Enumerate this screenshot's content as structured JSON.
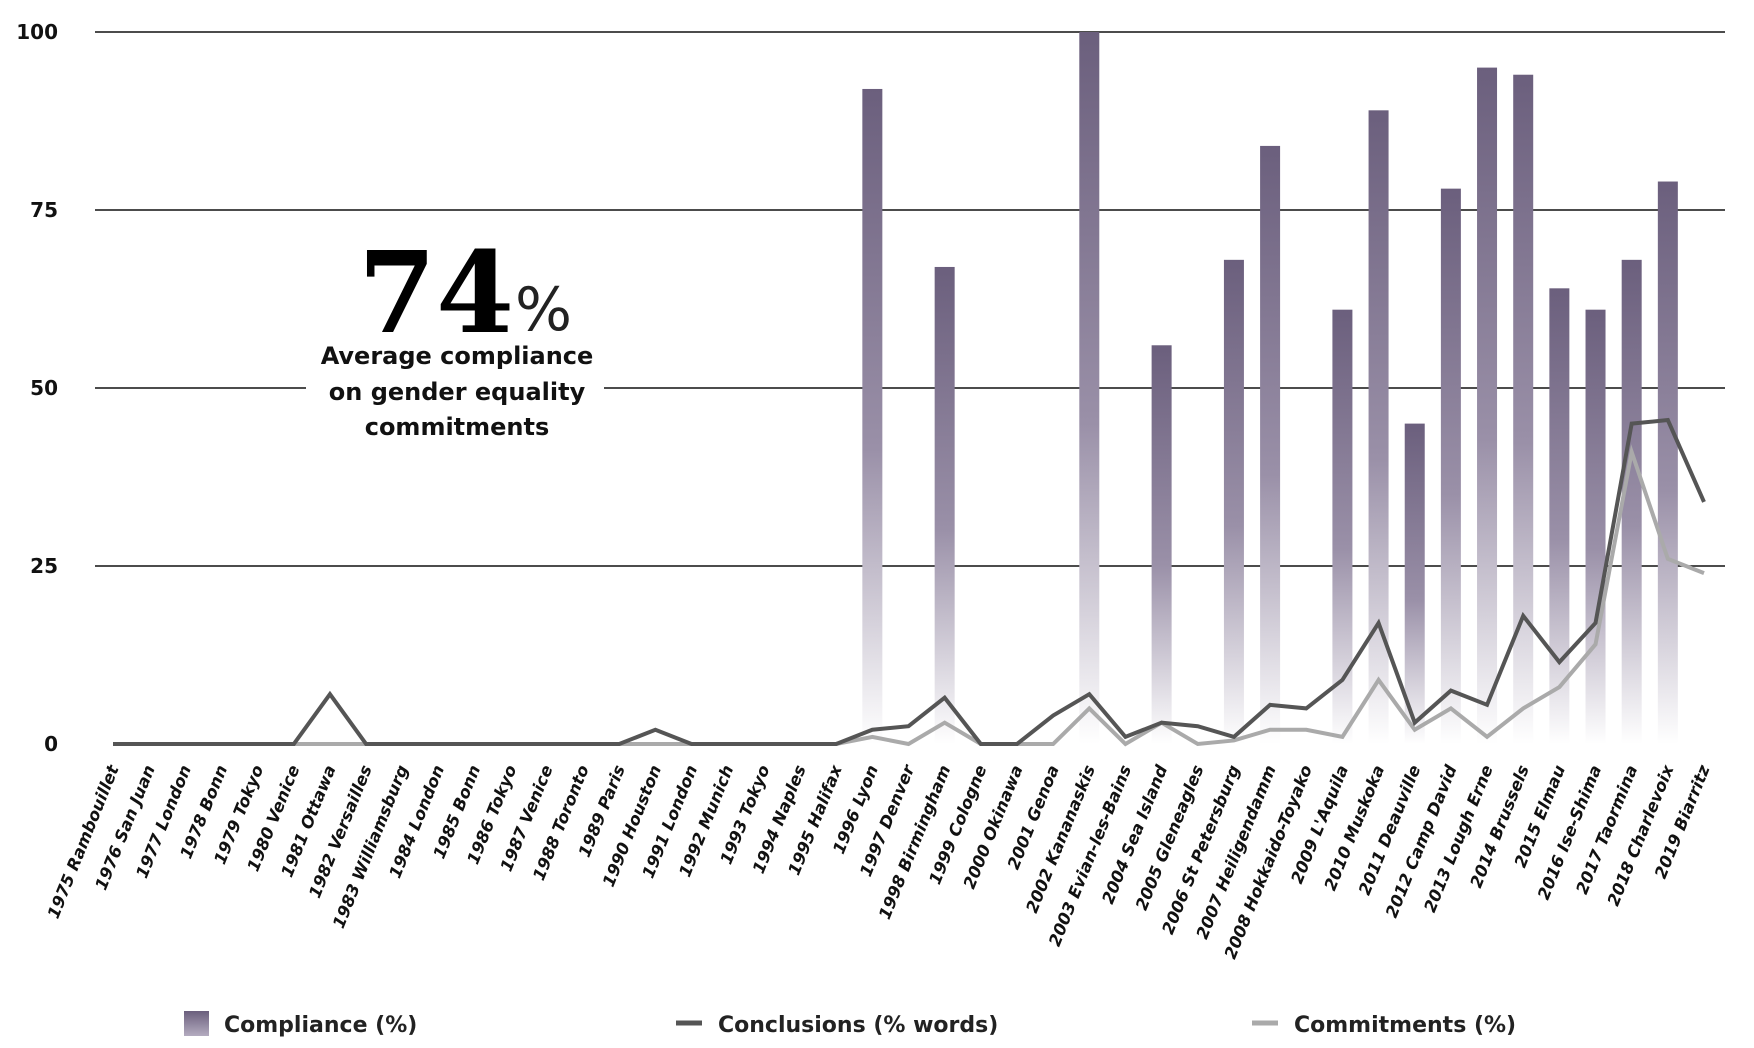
{
  "chart_data": {
    "type": "bar",
    "categories": [
      "1975 Rambouillet",
      "1976 San Juan",
      "1977 London",
      "1978 Bonn",
      "1979 Tokyo",
      "1980 Venice",
      "1981 Ottawa",
      "1982 Versailles",
      "1983 Williamsburg",
      "1984 London",
      "1985 Bonn",
      "1986 Tokyo",
      "1987 Venice",
      "1988 Toronto",
      "1989 Paris",
      "1990 Houston",
      "1991 London",
      "1992 Munich",
      "1993 Tokyo",
      "1994 Naples",
      "1995 Halifax",
      "1996 Lyon",
      "1997 Denver",
      "1998 Birmingham",
      "1999 Cologne",
      "2000 Okinawa",
      "2001 Genoa",
      "2002 Kananaskis",
      "2003 Evian-les-Bains",
      "2004 Sea Island",
      "2005 Gleneagles",
      "2006 St Petersburg",
      "2007 Heiligendamm",
      "2008 Hokkaido-Toyako",
      "2009 L'Aquila",
      "2010 Muskoka",
      "2011 Deauville",
      "2012 Camp David",
      "2013 Lough Erne",
      "2014 Brussels",
      "2015 Elmau",
      "2016 Ise-Shima",
      "2017 Taormina",
      "2018 Charlevoix",
      "2019 Biarritz"
    ],
    "series": [
      {
        "name": "Compliance (%)",
        "kind": "bar",
        "color": "#6b5f7d",
        "values": [
          null,
          null,
          null,
          null,
          null,
          null,
          null,
          null,
          null,
          null,
          null,
          null,
          null,
          null,
          null,
          null,
          null,
          null,
          null,
          null,
          null,
          92,
          null,
          67,
          null,
          null,
          null,
          100,
          null,
          56,
          null,
          68,
          84,
          null,
          61,
          89,
          45,
          78,
          95,
          94,
          64,
          61,
          68,
          79,
          null
        ]
      },
      {
        "name": "Conclusions (% words)",
        "kind": "line",
        "color": "#555555",
        "values": [
          0,
          0,
          0,
          0,
          0,
          0,
          7,
          0,
          0,
          0,
          0,
          0,
          0,
          0,
          0,
          2,
          0,
          0,
          0,
          0,
          0,
          2,
          2.5,
          6.5,
          0,
          0,
          4,
          7,
          1,
          3,
          2.5,
          1,
          5.5,
          5,
          9,
          17,
          3,
          7.5,
          5.5,
          18,
          11.5,
          17,
          45,
          45.5,
          34
        ]
      },
      {
        "name": "Commitments (%)",
        "kind": "line",
        "color": "#aaaaaa",
        "values": [
          0,
          0,
          0,
          0,
          0,
          0,
          0,
          0,
          0,
          0,
          0,
          0,
          0,
          0,
          0,
          0,
          0,
          0,
          0,
          0,
          0,
          1,
          0,
          3,
          0,
          0,
          0,
          5,
          0,
          3,
          0,
          0.5,
          2,
          2,
          1,
          9,
          2,
          5,
          1,
          5,
          8,
          14,
          41,
          26,
          24
        ]
      }
    ],
    "yticks": [
      "0",
      "25",
      "50",
      "75",
      "100"
    ],
    "ylim": [
      0,
      100
    ],
    "grid": true,
    "legend": "bottom",
    "annotation": {
      "value": "74",
      "unit": "%",
      "lines": [
        "Average compliance",
        "on gender equality",
        "commitments"
      ]
    }
  }
}
